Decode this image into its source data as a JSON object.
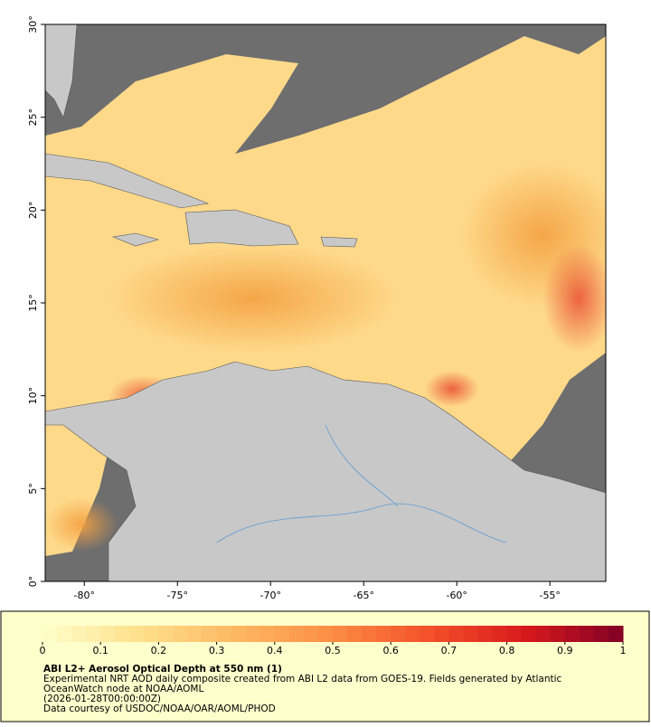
{
  "map": {
    "xlim": [
      -82.1,
      -52.0
    ],
    "ylim": [
      0,
      30
    ],
    "xticks": [
      {
        "value": -80,
        "label": "-80°"
      },
      {
        "value": -75,
        "label": "-75°"
      },
      {
        "value": -70,
        "label": "-70°"
      },
      {
        "value": -65,
        "label": "-65°"
      },
      {
        "value": -60,
        "label": "-60°"
      },
      {
        "value": -55,
        "label": "-55°"
      }
    ],
    "yticks": [
      {
        "value": 0,
        "label": "0°"
      },
      {
        "value": 5,
        "label": "5°"
      },
      {
        "value": 10,
        "label": "10°"
      },
      {
        "value": 15,
        "label": "15°"
      },
      {
        "value": 20,
        "label": "20°"
      },
      {
        "value": 25,
        "label": "25°"
      },
      {
        "value": 30,
        "label": "30°"
      }
    ]
  },
  "colorbar": {
    "lim": [
      0,
      1
    ],
    "ticks": [
      0,
      0.1,
      0.2,
      0.3,
      0.4,
      0.5,
      0.6,
      0.7,
      0.8,
      0.9,
      1
    ],
    "colors": [
      "#ffffcc",
      "#fee08b",
      "#fdb863",
      "#fc8d45",
      "#f4502a",
      "#d7191c",
      "#800026"
    ]
  },
  "caption": {
    "title": "ABI L2+ Aerosol Optical Depth at 550 nm (1)",
    "lines": [
      "Experimental NRT AOD daily composite created from ABI L2 data from GOES-19. Fields generated by Atlantic",
      "OceanWatch node at NOAA/AOML",
      "(2026-01-28T00:00:00Z)",
      "Data courtesy of USDOC/NOAA/OAR/AOML/PHOD"
    ]
  }
}
